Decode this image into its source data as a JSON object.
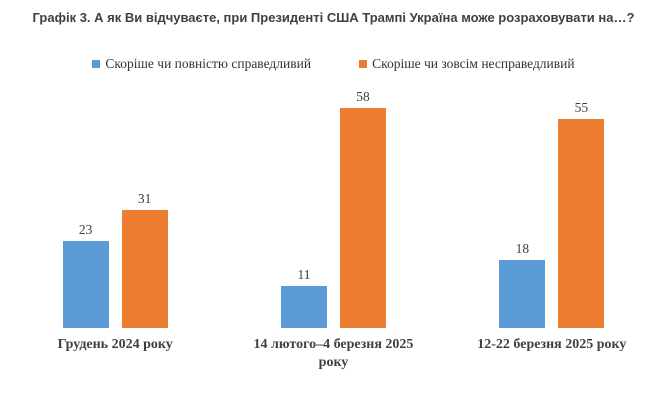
{
  "chart_data": {
    "type": "bar",
    "title": "Графік 3. А як Ви відчуваєте, при Президенті США Трампі Україна може розраховувати на…?",
    "categories": [
      "Грудень 2024 року",
      "14 лютого–4 березня 2025 року",
      "12-22 березня 2025 року"
    ],
    "series": [
      {
        "name": "Скоріше чи повністю справедливий",
        "color": "#5B9BD5",
        "values": [
          23,
          11,
          18
        ]
      },
      {
        "name": "Скоріше чи зовсім несправедливий",
        "color": "#ED7D31",
        "values": [
          31,
          58,
          55
        ]
      }
    ],
    "ylim": [
      0,
      58
    ],
    "grid": false,
    "axes_visible": false,
    "legend_position": "top",
    "data_labels": true,
    "text_color": "#404040",
    "background_color": "#ffffff"
  }
}
